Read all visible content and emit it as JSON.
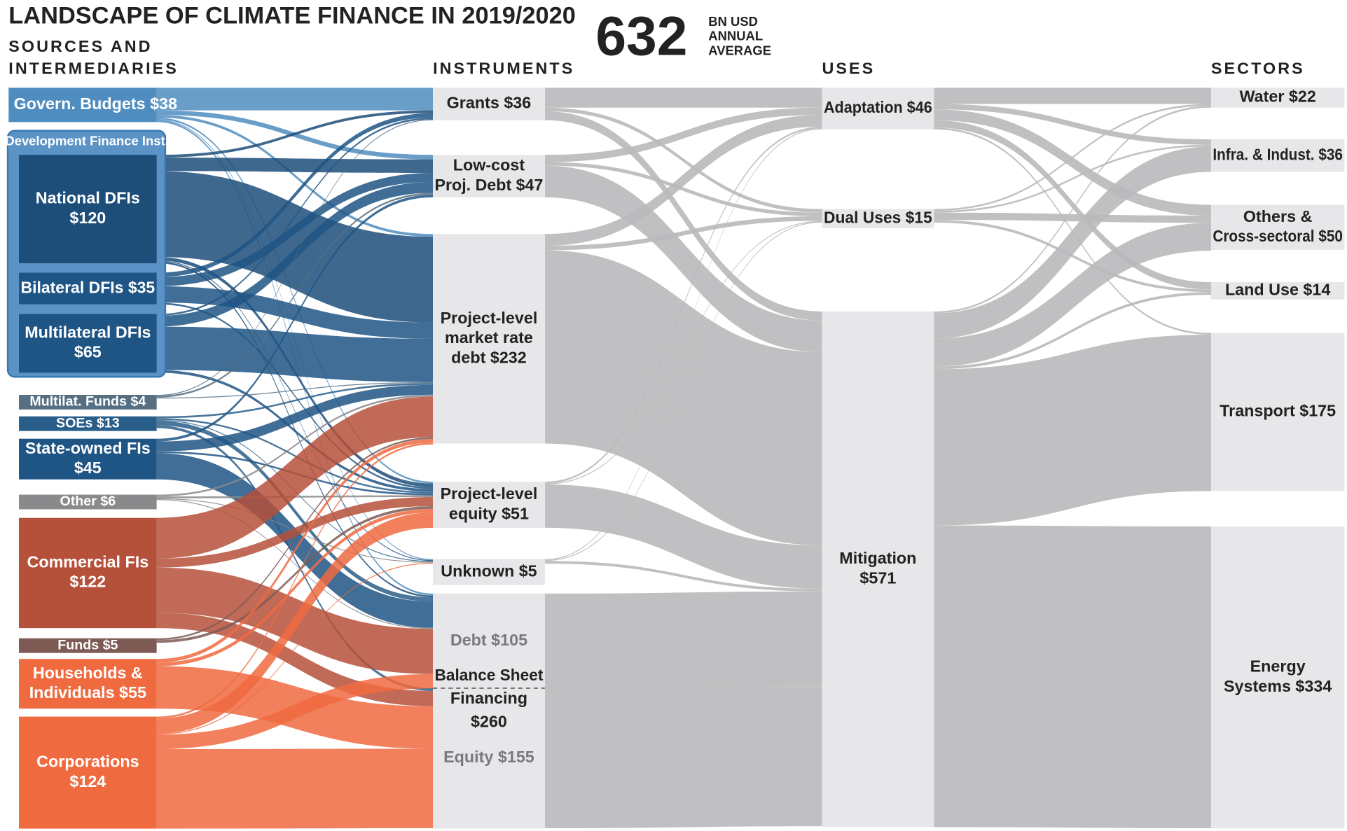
{
  "chart_data": {
    "type": "sankey",
    "title": "LANDSCAPE OF CLIMATE FINANCE IN 2019/2020",
    "total": 632,
    "total_unit": [
      "BN USD",
      "ANNUAL",
      "AVERAGE"
    ],
    "column_headers": [
      [
        "SOURCES AND",
        "INTERMEDIARIES"
      ],
      [
        "INSTRUMENTS"
      ],
      [
        "USES"
      ],
      [
        "SECTORS"
      ]
    ],
    "link_color": "#b9b9bb",
    "nodes": [
      {
        "lines": [
          "Govern. Budgets $38"
        ],
        "value": 38,
        "column": 0,
        "color": "#4f8dc0"
      },
      {
        "lines": [
          "National DFIs",
          "$120"
        ],
        "value": 120,
        "column": 0,
        "color": "#1d4e7a"
      },
      {
        "lines": [
          "Bilateral DFIs $35"
        ],
        "value": 35,
        "column": 0,
        "color": "#1f5585"
      },
      {
        "lines": [
          "Multilateral DFIs",
          "$65"
        ],
        "value": 65,
        "column": 0,
        "color": "#1f5585"
      },
      {
        "lines": [
          "Multilat. Funds $4"
        ],
        "value": 4,
        "column": 0,
        "color": "#566f82"
      },
      {
        "lines": [
          "SOEs $13"
        ],
        "value": 13,
        "column": 0,
        "color": "#2a5e8a"
      },
      {
        "lines": [
          "State-owned FIs",
          "$45"
        ],
        "value": 45,
        "column": 0,
        "color": "#1f5585"
      },
      {
        "lines": [
          "Other $6"
        ],
        "value": 6,
        "column": 0,
        "color": "#8a8a8c"
      },
      {
        "lines": [
          "Commercial FIs",
          "$122"
        ],
        "value": 122,
        "column": 0,
        "color": "#b5503a"
      },
      {
        "lines": [
          "Funds $5"
        ],
        "value": 5,
        "column": 0,
        "color": "#7e5a55"
      },
      {
        "lines": [
          "Households &",
          "Individuals $55"
        ],
        "value": 55,
        "column": 0,
        "color": "#f06a3f"
      },
      {
        "lines": [
          "Corporations",
          "$124"
        ],
        "value": 124,
        "column": 0,
        "color": "#f06a3f"
      },
      {
        "lines": [
          "Grants $36"
        ],
        "value": 36,
        "column": 1,
        "color": "#e7e7ea"
      },
      {
        "lines": [
          "Low-cost",
          "Proj. Debt $47"
        ],
        "value": 47,
        "column": 1,
        "color": "#e7e7ea"
      },
      {
        "lines": [
          "Project-level",
          "market rate",
          "debt $232"
        ],
        "value": 232,
        "column": 1,
        "color": "#e7e7ea"
      },
      {
        "lines": [
          "Project-level",
          "equity $51"
        ],
        "value": 51,
        "column": 1,
        "color": "#e7e7ea"
      },
      {
        "lines": [
          "Unknown $5"
        ],
        "value": 5,
        "column": 1,
        "color": "#e7e7ea"
      },
      {
        "lines": [
          "Debt $105"
        ],
        "value": 105,
        "column": 1,
        "color": "#e7e7ea",
        "label_color": "#7a7a7c"
      },
      {
        "lines": [
          "Equity $155"
        ],
        "value": 155,
        "column": 1,
        "color": "#e7e7ea",
        "label_color": "#7a7a7c"
      },
      {
        "lines": [
          "Adaptation $46"
        ],
        "value": 46,
        "column": 2,
        "color": "#e7e7ea"
      },
      {
        "lines": [
          "Dual Uses $15"
        ],
        "value": 15,
        "column": 2,
        "color": "#e7e7ea"
      },
      {
        "lines": [
          "Mitigation",
          "$571"
        ],
        "value": 571,
        "column": 2,
        "color": "#e7e7ea"
      },
      {
        "lines": [
          "Water $22"
        ],
        "value": 22,
        "column": 3,
        "color": "#e7e7ea"
      },
      {
        "lines": [
          "Infra. & Indust. $36"
        ],
        "value": 36,
        "column": 3,
        "color": "#e7e7ea"
      },
      {
        "lines": [
          "Others &",
          "Cross-sectoral $50"
        ],
        "value": 50,
        "column": 3,
        "color": "#e7e7ea"
      },
      {
        "lines": [
          "Land Use $14"
        ],
        "value": 14,
        "column": 3,
        "color": "#e7e7ea"
      },
      {
        "lines": [
          "Transport $175"
        ],
        "value": 175,
        "column": 3,
        "color": "#e7e7ea"
      },
      {
        "lines": [
          "Energy",
          "Systems $334"
        ],
        "value": 334,
        "column": 3,
        "color": "#e7e7ea"
      }
    ],
    "groups": [
      {
        "lines": [
          "Development Finance Inst."
        ],
        "color": "#5c93c6"
      },
      {
        "lines": [
          "Balance Sheet",
          "Financing",
          "$260"
        ],
        "value": 260,
        "color": "#e7e7ea"
      }
    ],
    "links": [
      {
        "source": 0,
        "target": 12,
        "value": 25
      },
      {
        "source": 0,
        "target": 13,
        "value": 5
      },
      {
        "source": 0,
        "target": 14,
        "value": 3
      },
      {
        "source": 0,
        "target": 15,
        "value": 2
      },
      {
        "source": 0,
        "target": 16,
        "value": 1
      },
      {
        "source": 0,
        "target": 17,
        "value": 2
      },
      {
        "source": 1,
        "target": 12,
        "value": 3
      },
      {
        "source": 1,
        "target": 13,
        "value": 15
      },
      {
        "source": 1,
        "target": 14,
        "value": 95
      },
      {
        "source": 1,
        "target": 15,
        "value": 4
      },
      {
        "source": 1,
        "target": 16,
        "value": 1
      },
      {
        "source": 1,
        "target": 17,
        "value": 2
      },
      {
        "source": 2,
        "target": 12,
        "value": 5
      },
      {
        "source": 2,
        "target": 13,
        "value": 10
      },
      {
        "source": 2,
        "target": 14,
        "value": 18
      },
      {
        "source": 2,
        "target": 15,
        "value": 2
      },
      {
        "source": 3,
        "target": 12,
        "value": 2
      },
      {
        "source": 3,
        "target": 13,
        "value": 12
      },
      {
        "source": 3,
        "target": 14,
        "value": 48
      },
      {
        "source": 3,
        "target": 15,
        "value": 3
      },
      {
        "source": 4,
        "target": 12,
        "value": 1
      },
      {
        "source": 4,
        "target": 13,
        "value": 2
      },
      {
        "source": 4,
        "target": 14,
        "value": 1
      },
      {
        "source": 5,
        "target": 14,
        "value": 2
      },
      {
        "source": 5,
        "target": 15,
        "value": 2
      },
      {
        "source": 5,
        "target": 16,
        "value": 1
      },
      {
        "source": 5,
        "target": 17,
        "value": 5
      },
      {
        "source": 5,
        "target": 18,
        "value": 3
      },
      {
        "source": 6,
        "target": 13,
        "value": 3
      },
      {
        "source": 6,
        "target": 14,
        "value": 11
      },
      {
        "source": 6,
        "target": 15,
        "value": 2
      },
      {
        "source": 6,
        "target": 17,
        "value": 29
      },
      {
        "source": 7,
        "target": 14,
        "value": 2
      },
      {
        "source": 7,
        "target": 15,
        "value": 2
      },
      {
        "source": 7,
        "target": 16,
        "value": 1
      },
      {
        "source": 7,
        "target": 17,
        "value": 1
      },
      {
        "source": 8,
        "target": 14,
        "value": 45
      },
      {
        "source": 8,
        "target": 15,
        "value": 10
      },
      {
        "source": 8,
        "target": 17,
        "value": 50
      },
      {
        "source": 8,
        "target": 18,
        "value": 17
      },
      {
        "source": 9,
        "target": 14,
        "value": 2
      },
      {
        "source": 9,
        "target": 15,
        "value": 3
      },
      {
        "source": 10,
        "target": 14,
        "value": 4
      },
      {
        "source": 10,
        "target": 15,
        "value": 4
      },
      {
        "source": 10,
        "target": 18,
        "value": 47
      },
      {
        "source": 11,
        "target": 14,
        "value": 2
      },
      {
        "source": 11,
        "target": 15,
        "value": 17
      },
      {
        "source": 11,
        "target": 16,
        "value": 1
      },
      {
        "source": 11,
        "target": 17,
        "value": 16
      },
      {
        "source": 11,
        "target": 18,
        "value": 88
      },
      {
        "source": 12,
        "target": 19,
        "value": 22
      },
      {
        "source": 12,
        "target": 20,
        "value": 4
      },
      {
        "source": 12,
        "target": 21,
        "value": 10
      },
      {
        "source": 13,
        "target": 19,
        "value": 8
      },
      {
        "source": 13,
        "target": 20,
        "value": 4
      },
      {
        "source": 13,
        "target": 21,
        "value": 35
      },
      {
        "source": 14,
        "target": 19,
        "value": 13
      },
      {
        "source": 14,
        "target": 20,
        "value": 5
      },
      {
        "source": 14,
        "target": 21,
        "value": 214
      },
      {
        "source": 15,
        "target": 19,
        "value": 2
      },
      {
        "source": 15,
        "target": 20,
        "value": 1
      },
      {
        "source": 15,
        "target": 21,
        "value": 48
      },
      {
        "source": 16,
        "target": 19,
        "value": 1
      },
      {
        "source": 16,
        "target": 20,
        "value": 1
      },
      {
        "source": 16,
        "target": 21,
        "value": 3
      },
      {
        "source": 17,
        "target": 21,
        "value": 105
      },
      {
        "source": 18,
        "target": 21,
        "value": 155
      },
      {
        "source": 19,
        "target": 22,
        "value": 18
      },
      {
        "source": 19,
        "target": 23,
        "value": 6
      },
      {
        "source": 19,
        "target": 24,
        "value": 12
      },
      {
        "source": 19,
        "target": 25,
        "value": 8
      },
      {
        "source": 19,
        "target": 26,
        "value": 2
      },
      {
        "source": 20,
        "target": 22,
        "value": 2
      },
      {
        "source": 20,
        "target": 23,
        "value": 2
      },
      {
        "source": 20,
        "target": 24,
        "value": 8
      },
      {
        "source": 20,
        "target": 25,
        "value": 3
      },
      {
        "source": 21,
        "target": 22,
        "value": 2
      },
      {
        "source": 21,
        "target": 23,
        "value": 28
      },
      {
        "source": 21,
        "target": 24,
        "value": 31
      },
      {
        "source": 21,
        "target": 25,
        "value": 3
      },
      {
        "source": 21,
        "target": 26,
        "value": 173
      },
      {
        "source": 21,
        "target": 27,
        "value": 334
      }
    ]
  }
}
